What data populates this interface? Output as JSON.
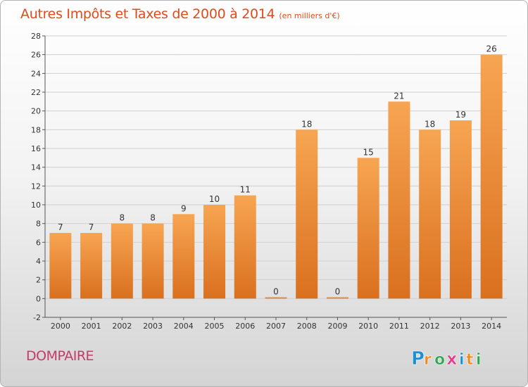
{
  "header": {
    "title": "Autres Impôts et Taxes de 2000 à 2014",
    "unit": "(en milliers d'€)"
  },
  "footer": {
    "commune": "DOMPAIRE",
    "brand": "Proxiti",
    "brand_letters": [
      "P",
      "r",
      "o",
      "x",
      "i",
      "t",
      "i"
    ]
  },
  "colors": {
    "title": "#e04a1c",
    "commune": "#c43a6a",
    "bar_top": "#f7a552",
    "bar_bottom": "#d9701f",
    "grid": "#d0d0d0",
    "brand": [
      "#1a8fd6",
      "#f08a1c",
      "#2aa84a",
      "#e63c8c",
      "#1a8fd6",
      "#f08a1c",
      "#2aa84a"
    ]
  },
  "chart_data": {
    "type": "bar",
    "title": "Autres Impôts et Taxes de 2000 à 2014",
    "subtitle": "(en milliers d'€)",
    "categories": [
      "2000",
      "2001",
      "2002",
      "2003",
      "2004",
      "2005",
      "2006",
      "2007",
      "2008",
      "2009",
      "2010",
      "2011",
      "2012",
      "2013",
      "2014"
    ],
    "values": [
      7,
      7,
      8,
      8,
      9,
      10,
      11,
      0,
      18,
      0,
      15,
      21,
      18,
      19,
      26
    ],
    "value_labels": [
      "7",
      "7",
      "8",
      "8",
      "9",
      "10",
      "11",
      "0",
      "18",
      "0",
      "15",
      "21",
      "18",
      "19",
      "26"
    ],
    "y_ticks": [
      "-2",
      "0",
      "2",
      "4",
      "6",
      "8",
      "10",
      "12",
      "14",
      "16",
      "18",
      "20",
      "22",
      "24",
      "26",
      "28"
    ],
    "ylim": [
      -2,
      28
    ],
    "grid": true,
    "legend": "none"
  }
}
